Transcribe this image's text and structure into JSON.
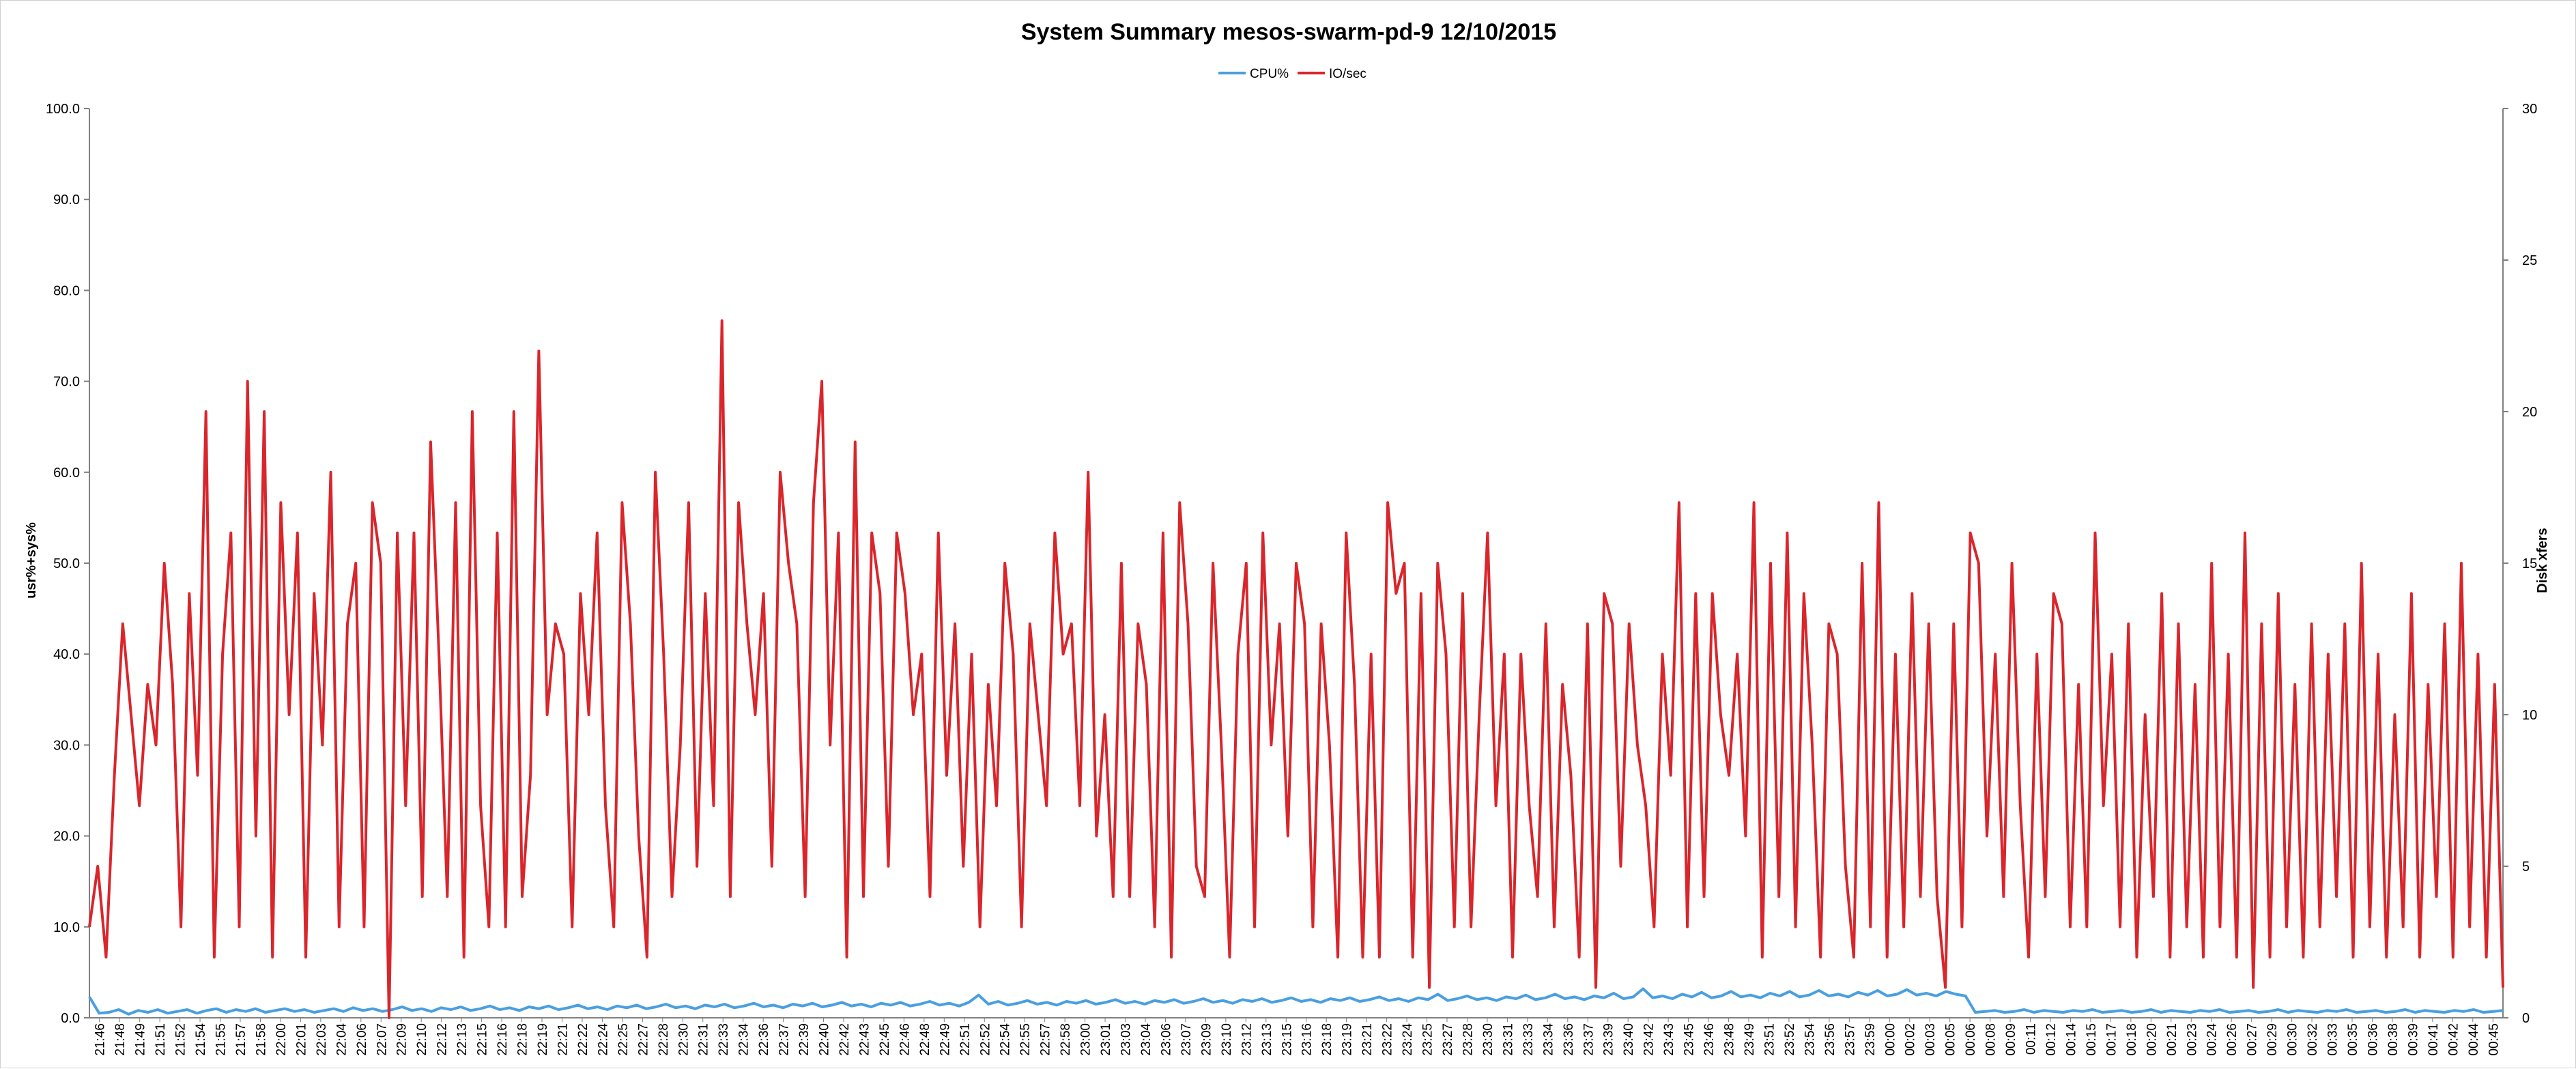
{
  "chart_data": {
    "type": "line",
    "title": "System Summary mesos-swarm-pd-9  12/10/2015",
    "ylabel_left": "usr%+sys%",
    "ylabel_right": "Disk xfers",
    "ylim_left": [
      0,
      100
    ],
    "ylim_right": [
      0,
      30
    ],
    "yticks_left": [
      "0.0",
      "10.0",
      "20.0",
      "30.0",
      "40.0",
      "50.0",
      "60.0",
      "70.0",
      "80.0",
      "90.0",
      "100.0"
    ],
    "yticks_right": [
      "0",
      "5",
      "10",
      "15",
      "20",
      "25",
      "30"
    ],
    "legend_position": "top",
    "colors": {
      "cpu": "#4a9fe0",
      "io": "#d9262c"
    },
    "x_labels": [
      "21:46",
      "21:48",
      "21:49",
      "21:51",
      "21:52",
      "21:54",
      "21:55",
      "21:57",
      "21:58",
      "22:00",
      "22:01",
      "22:03",
      "22:04",
      "22:06",
      "22:07",
      "22:09",
      "22:10",
      "22:12",
      "22:13",
      "22:15",
      "22:16",
      "22:18",
      "22:19",
      "22:21",
      "22:22",
      "22:24",
      "22:25",
      "22:27",
      "22:28",
      "22:30",
      "22:31",
      "22:33",
      "22:34",
      "22:36",
      "22:37",
      "22:39",
      "22:40",
      "22:42",
      "22:43",
      "22:45",
      "22:46",
      "22:48",
      "22:49",
      "22:51",
      "22:52",
      "22:54",
      "22:55",
      "22:57",
      "22:58",
      "23:00",
      "23:01",
      "23:03",
      "23:04",
      "23:06",
      "23:07",
      "23:09",
      "23:10",
      "23:12",
      "23:13",
      "23:15",
      "23:16",
      "23:18",
      "23:19",
      "23:21",
      "23:22",
      "23:24",
      "23:25",
      "23:27",
      "23:28",
      "23:30",
      "23:31",
      "23:33",
      "23:34",
      "23:36",
      "23:37",
      "23:39",
      "23:40",
      "23:42",
      "23:43",
      "23:45",
      "23:46",
      "23:48",
      "23:49",
      "23:51",
      "23:52",
      "23:54",
      "23:56",
      "23:57",
      "23:59",
      "00:00",
      "00:02",
      "00:03",
      "00:05",
      "00:06",
      "00:08",
      "00:09",
      "00:11",
      "00:12",
      "00:14",
      "00:15",
      "00:17",
      "00:18",
      "00:20",
      "00:21",
      "00:23",
      "00:24",
      "00:26",
      "00:27",
      "00:29",
      "00:30",
      "00:32",
      "00:33",
      "00:35",
      "00:36",
      "00:38",
      "00:39",
      "00:41",
      "00:42",
      "00:44",
      "00:45"
    ],
    "series": [
      {
        "name": "CPU%",
        "axis": "left",
        "values": [
          2.3,
          0.5,
          0.6,
          0.9,
          0.4,
          0.8,
          0.6,
          0.9,
          0.5,
          0.7,
          0.9,
          0.5,
          0.8,
          1.0,
          0.6,
          0.9,
          0.7,
          1.0,
          0.6,
          0.8,
          1.0,
          0.7,
          0.9,
          0.6,
          0.8,
          1.0,
          0.7,
          1.1,
          0.8,
          1.0,
          0.7,
          0.9,
          1.2,
          0.8,
          1.0,
          0.7,
          1.1,
          0.9,
          1.2,
          0.8,
          1.0,
          1.3,
          0.9,
          1.1,
          0.8,
          1.2,
          1.0,
          1.3,
          0.9,
          1.1,
          1.4,
          1.0,
          1.2,
          0.9,
          1.3,
          1.1,
          1.4,
          1.0,
          1.2,
          1.5,
          1.1,
          1.3,
          1.0,
          1.4,
          1.2,
          1.5,
          1.1,
          1.3,
          1.6,
          1.2,
          1.4,
          1.1,
          1.5,
          1.3,
          1.6,
          1.2,
          1.4,
          1.7,
          1.3,
          1.5,
          1.2,
          1.6,
          1.4,
          1.7,
          1.3,
          1.5,
          1.8,
          1.4,
          1.6,
          1.3,
          1.7,
          2.5,
          1.5,
          1.8,
          1.4,
          1.6,
          1.9,
          1.5,
          1.7,
          1.4,
          1.8,
          1.6,
          1.9,
          1.5,
          1.7,
          2.0,
          1.6,
          1.8,
          1.5,
          1.9,
          1.7,
          2.0,
          1.6,
          1.8,
          2.1,
          1.7,
          1.9,
          1.6,
          2.0,
          1.8,
          2.1,
          1.7,
          1.9,
          2.2,
          1.8,
          2.0,
          1.7,
          2.1,
          1.9,
          2.2,
          1.8,
          2.0,
          2.3,
          1.9,
          2.1,
          1.8,
          2.2,
          2.0,
          2.6,
          1.9,
          2.1,
          2.4,
          2.0,
          2.2,
          1.9,
          2.3,
          2.1,
          2.5,
          2.0,
          2.2,
          2.6,
          2.1,
          2.3,
          2.0,
          2.4,
          2.2,
          2.7,
          2.1,
          2.3,
          3.2,
          2.2,
          2.4,
          2.1,
          2.6,
          2.3,
          2.8,
          2.2,
          2.4,
          2.9,
          2.3,
          2.5,
          2.2,
          2.7,
          2.4,
          2.9,
          2.3,
          2.5,
          3.0,
          2.4,
          2.6,
          2.3,
          2.8,
          2.5,
          3.0,
          2.4,
          2.6,
          3.1,
          2.5,
          2.7,
          2.4,
          2.9,
          2.6,
          2.4,
          0.6,
          0.7,
          0.8,
          0.6,
          0.7,
          0.9,
          0.6,
          0.8,
          0.7,
          0.6,
          0.8,
          0.7,
          0.9,
          0.6,
          0.7,
          0.8,
          0.6,
          0.7,
          0.9,
          0.6,
          0.8,
          0.7,
          0.6,
          0.8,
          0.7,
          0.9,
          0.6,
          0.7,
          0.8,
          0.6,
          0.7,
          0.9,
          0.6,
          0.8,
          0.7,
          0.6,
          0.8,
          0.7,
          0.9,
          0.6,
          0.7,
          0.8,
          0.6,
          0.7,
          0.9,
          0.6,
          0.8,
          0.7,
          0.6,
          0.8,
          0.7,
          0.9,
          0.6,
          0.7,
          0.8
        ]
      },
      {
        "name": "IO/sec",
        "axis": "right",
        "values": [
          3,
          5,
          2,
          8,
          13,
          10,
          7,
          11,
          9,
          15,
          11,
          3,
          14,
          8,
          20,
          2,
          12,
          16,
          3,
          21,
          6,
          20,
          2,
          17,
          10,
          16,
          2,
          14,
          9,
          18,
          3,
          13,
          15,
          3,
          17,
          15,
          0,
          16,
          7,
          16,
          4,
          19,
          12,
          4,
          17,
          2,
          20,
          7,
          3,
          16,
          3,
          20,
          4,
          8,
          22,
          10,
          13,
          12,
          3,
          14,
          10,
          16,
          7,
          3,
          17,
          13,
          6,
          2,
          18,
          12,
          4,
          9,
          17,
          5,
          14,
          7,
          23,
          4,
          17,
          13,
          10,
          14,
          5,
          18,
          15,
          13,
          4,
          17,
          21,
          9,
          16,
          2,
          19,
          4,
          16,
          14,
          5,
          16,
          14,
          10,
          12,
          4,
          16,
          8,
          13,
          5,
          12,
          3,
          11,
          7,
          15,
          12,
          3,
          13,
          10,
          7,
          16,
          12,
          13,
          7,
          18,
          6,
          10,
          4,
          15,
          4,
          13,
          11,
          3,
          16,
          2,
          17,
          13,
          5,
          4,
          15,
          9,
          2,
          12,
          15,
          3,
          16,
          9,
          13,
          6,
          15,
          13,
          3,
          13,
          9,
          2,
          16,
          11,
          2,
          12,
          2,
          17,
          14,
          15,
          2,
          14,
          1,
          15,
          12,
          3,
          14,
          3,
          10,
          16,
          7,
          12,
          2,
          12,
          7,
          4,
          13,
          3,
          11,
          8,
          2,
          13,
          1,
          14,
          13,
          5,
          13,
          9,
          7,
          3,
          12,
          8,
          17,
          3,
          14,
          4,
          14,
          10,
          8,
          12,
          6,
          17,
          2,
          15,
          4,
          16,
          3,
          14,
          9,
          2,
          13,
          12,
          5,
          2,
          15,
          3,
          17,
          2,
          12,
          3,
          14,
          4,
          13,
          4,
          1,
          13,
          3,
          16,
          15,
          6,
          12,
          4,
          15,
          7,
          2,
          12,
          4,
          14,
          13,
          3,
          11,
          3,
          16,
          7,
          12,
          3,
          13,
          2,
          10,
          4,
          14,
          2,
          13,
          3,
          11,
          2,
          15,
          3,
          12,
          2,
          16,
          1,
          13,
          2,
          14,
          3,
          11,
          2,
          13,
          3,
          12,
          4,
          13,
          2,
          15,
          3,
          12,
          2,
          10,
          3,
          14,
          2,
          11,
          4,
          13,
          2,
          15,
          3,
          12,
          2,
          11,
          1
        ]
      }
    ]
  }
}
